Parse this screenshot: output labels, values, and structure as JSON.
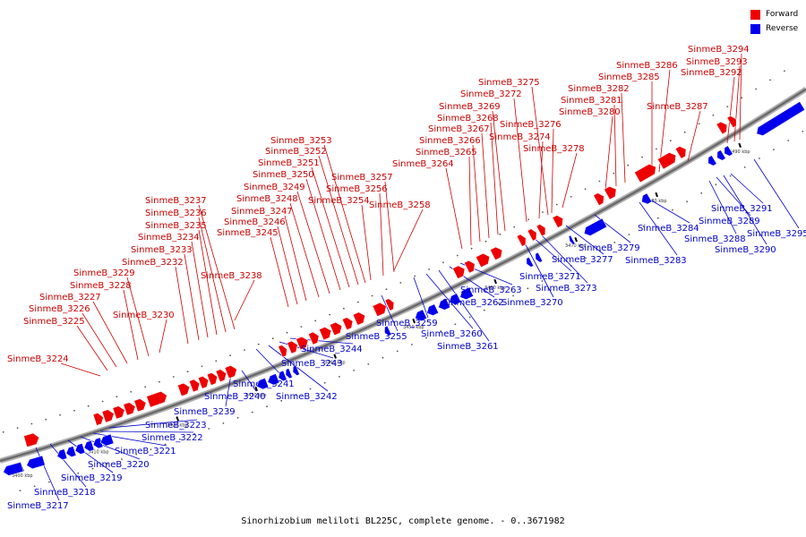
{
  "caption": "Sinorhizobium meliloti BL225C, complete genome. - 0..3671982",
  "legend": [
    {
      "label": "Forward",
      "color": "#ee0000"
    },
    {
      "label": "Reverse",
      "color": "#0000ee"
    }
  ],
  "colors": {
    "forward": "#ee0000",
    "reverse": "#0000ee",
    "backbone": "#888888"
  },
  "ticks": [
    "3400 kbp",
    "3410 kbp",
    "3420 kbp",
    "3430 kbp",
    "3440 kbp",
    "3450 kbp",
    "3460 kbp",
    "3470 kbp",
    "3480 kbp",
    "3490 kbp"
  ],
  "forward_genes": [
    "SinmeB_3224",
    "SinmeB_3225",
    "SinmeB_3226",
    "SinmeB_3227",
    "SinmeB_3228",
    "SinmeB_3229",
    "SinmeB_3230",
    "SinmeB_3232",
    "SinmeB_3233",
    "SinmeB_3234",
    "SinmeB_3235",
    "SinmeB_3236",
    "SinmeB_3237",
    "SinmeB_3238",
    "SinmeB_3245",
    "SinmeB_3246",
    "SinmeB_3247",
    "SinmeB_3248",
    "SinmeB_3249",
    "SinmeB_3250",
    "SinmeB_3251",
    "SinmeB_3252",
    "SinmeB_3253",
    "SinmeB_3254",
    "SinmeB_3256",
    "SinmeB_3257",
    "SinmeB_3258",
    "SinmeB_3264",
    "SinmeB_3265",
    "SinmeB_3266",
    "SinmeB_3267",
    "SinmeB_3268",
    "SinmeB_3269",
    "SinmeB_3272",
    "SinmeB_3274",
    "SinmeB_3275",
    "SinmeB_3276",
    "SinmeB_3278",
    "SinmeB_3280",
    "SinmeB_3281",
    "SinmeB_3282",
    "SinmeB_3285",
    "SinmeB_3286",
    "SinmeB_3287",
    "SinmeB_3292",
    "SinmeB_3293",
    "SinmeB_3294"
  ],
  "reverse_genes": [
    "SinmeB_3217",
    "SinmeB_3218",
    "SinmeB_3219",
    "SinmeB_3220",
    "SinmeB_3221",
    "SinmeB_3222",
    "SinmeB_3223",
    "SinmeB_3239",
    "SinmeB_3240",
    "SinmeB_3241",
    "SinmeB_3242",
    "SinmeB_3243",
    "SinmeB_3244",
    "SinmeB_3255",
    "SinmeB_3259",
    "SinmeB_3260",
    "SinmeB_3261",
    "SinmeB_3262",
    "SinmeB_3263",
    "SinmeB_3270",
    "SinmeB_3271",
    "SinmeB_3273",
    "SinmeB_3277",
    "SinmeB_3279",
    "SinmeB_3283",
    "SinmeB_3284",
    "SinmeB_3288",
    "SinmeB_3289",
    "SinmeB_3290",
    "SinmeB_3291",
    "SinmeB_3295"
  ]
}
